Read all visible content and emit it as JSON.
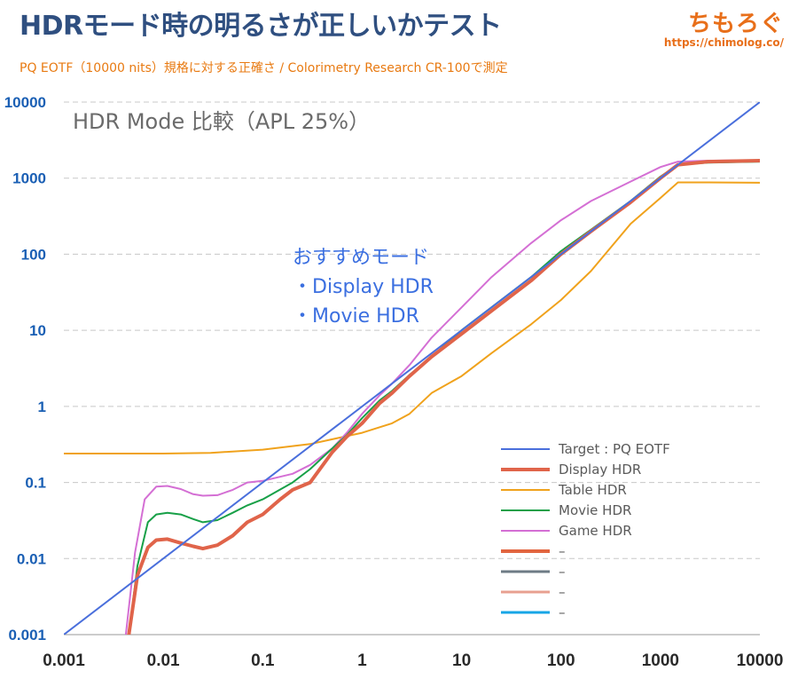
{
  "header": {
    "title": "HDRモード時の明るさが正しいかテスト",
    "subtitle": "PQ EOTF（10000 nits）規格に対する正確さ / Colorimetry Research CR-100で測定"
  },
  "brand": {
    "name": "ちもろぐ",
    "url": "https://chimolog.co/",
    "color": "#e86f1a"
  },
  "chart_data": {
    "type": "line",
    "title": "HDR Mode 比較（APL 25%）",
    "xlabel": "",
    "ylabel": "",
    "x_scale": "log",
    "y_scale": "log",
    "xlim": [
      0.001,
      10000
    ],
    "ylim": [
      0.001,
      10000
    ],
    "x_ticks": [
      "0.001",
      "0.01",
      "0.1",
      "1",
      "10",
      "100",
      "1000",
      "10000"
    ],
    "y_ticks": [
      "0.001",
      "0.01",
      "0.1",
      "1",
      "10",
      "100",
      "1000",
      "10000"
    ],
    "grid": "horizontal dashed",
    "legend_position": "bottom-right",
    "annotation": [
      "おすすめモード",
      "・Display HDR",
      "・Movie HDR"
    ],
    "series": [
      {
        "name": "Target : PQ EOTF",
        "color": "#4a6fdc",
        "width": 2,
        "points": [
          [
            0.001,
            0.001
          ],
          [
            10000,
            10000
          ]
        ]
      },
      {
        "name": "Display HDR",
        "color": "#e0644a",
        "width": 4,
        "points": [
          [
            0.0045,
            0.001
          ],
          [
            0.0055,
            0.006
          ],
          [
            0.007,
            0.014
          ],
          [
            0.0085,
            0.0175
          ],
          [
            0.011,
            0.018
          ],
          [
            0.015,
            0.016
          ],
          [
            0.02,
            0.0145
          ],
          [
            0.025,
            0.0135
          ],
          [
            0.035,
            0.015
          ],
          [
            0.05,
            0.02
          ],
          [
            0.07,
            0.03
          ],
          [
            0.1,
            0.038
          ],
          [
            0.15,
            0.06
          ],
          [
            0.2,
            0.08
          ],
          [
            0.3,
            0.1
          ],
          [
            0.5,
            0.25
          ],
          [
            0.7,
            0.4
          ],
          [
            1,
            0.6
          ],
          [
            1.5,
            1.1
          ],
          [
            2,
            1.5
          ],
          [
            3,
            2.5
          ],
          [
            5,
            4.5
          ],
          [
            10,
            9
          ],
          [
            20,
            18
          ],
          [
            50,
            45
          ],
          [
            100,
            100
          ],
          [
            200,
            200
          ],
          [
            500,
            480
          ],
          [
            1000,
            1000
          ],
          [
            1500,
            1500
          ],
          [
            3000,
            1650
          ],
          [
            10000,
            1700
          ]
        ]
      },
      {
        "name": "Table HDR",
        "color": "#f0a21c",
        "width": 2,
        "points": [
          [
            0.001,
            0.24
          ],
          [
            0.01,
            0.24
          ],
          [
            0.03,
            0.245
          ],
          [
            0.1,
            0.27
          ],
          [
            0.3,
            0.32
          ],
          [
            1,
            0.45
          ],
          [
            2,
            0.6
          ],
          [
            3,
            0.8
          ],
          [
            5,
            1.5
          ],
          [
            10,
            2.5
          ],
          [
            20,
            5
          ],
          [
            50,
            12
          ],
          [
            100,
            25
          ],
          [
            200,
            60
          ],
          [
            500,
            250
          ],
          [
            1000,
            550
          ],
          [
            1500,
            880
          ],
          [
            3000,
            880
          ],
          [
            10000,
            870
          ]
        ]
      },
      {
        "name": "Movie HDR",
        "color": "#18a048",
        "width": 2,
        "points": [
          [
            0.0045,
            0.001
          ],
          [
            0.0055,
            0.008
          ],
          [
            0.007,
            0.03
          ],
          [
            0.0085,
            0.038
          ],
          [
            0.011,
            0.04
          ],
          [
            0.015,
            0.038
          ],
          [
            0.02,
            0.033
          ],
          [
            0.025,
            0.03
          ],
          [
            0.035,
            0.032
          ],
          [
            0.05,
            0.04
          ],
          [
            0.07,
            0.05
          ],
          [
            0.1,
            0.06
          ],
          [
            0.2,
            0.1
          ],
          [
            0.3,
            0.15
          ],
          [
            0.5,
            0.28
          ],
          [
            0.7,
            0.42
          ],
          [
            1,
            0.7
          ],
          [
            1.5,
            1.2
          ],
          [
            2,
            1.6
          ],
          [
            3,
            2.6
          ],
          [
            5,
            4.5
          ],
          [
            10,
            10
          ],
          [
            20,
            20
          ],
          [
            50,
            50
          ],
          [
            100,
            110
          ],
          [
            200,
            210
          ],
          [
            500,
            500
          ],
          [
            1000,
            1050
          ],
          [
            1500,
            1500
          ],
          [
            3000,
            1600
          ],
          [
            10000,
            1650
          ]
        ]
      },
      {
        "name": "Game HDR",
        "color": "#d46fd4",
        "width": 2,
        "points": [
          [
            0.0042,
            0.001
          ],
          [
            0.0052,
            0.012
          ],
          [
            0.0065,
            0.06
          ],
          [
            0.0085,
            0.088
          ],
          [
            0.011,
            0.09
          ],
          [
            0.015,
            0.082
          ],
          [
            0.02,
            0.07
          ],
          [
            0.025,
            0.067
          ],
          [
            0.035,
            0.068
          ],
          [
            0.05,
            0.08
          ],
          [
            0.07,
            0.1
          ],
          [
            0.1,
            0.105
          ],
          [
            0.2,
            0.13
          ],
          [
            0.3,
            0.17
          ],
          [
            0.5,
            0.28
          ],
          [
            0.7,
            0.45
          ],
          [
            1,
            0.8
          ],
          [
            1.5,
            1.4
          ],
          [
            2,
            2
          ],
          [
            3,
            3.5
          ],
          [
            5,
            8
          ],
          [
            10,
            20
          ],
          [
            20,
            50
          ],
          [
            50,
            140
          ],
          [
            100,
            280
          ],
          [
            200,
            500
          ],
          [
            500,
            900
          ],
          [
            1000,
            1400
          ],
          [
            1500,
            1650
          ],
          [
            3000,
            1700
          ],
          [
            10000,
            1720
          ]
        ]
      },
      {
        "name": "–",
        "color": "#e2653f",
        "width": 4,
        "points": []
      },
      {
        "name": "–",
        "color": "#6e7b85",
        "width": 3,
        "points": []
      },
      {
        "name": "–",
        "color": "#e8a090",
        "width": 3,
        "points": []
      },
      {
        "name": "–",
        "color": "#17a6e6",
        "width": 3,
        "points": []
      }
    ]
  }
}
